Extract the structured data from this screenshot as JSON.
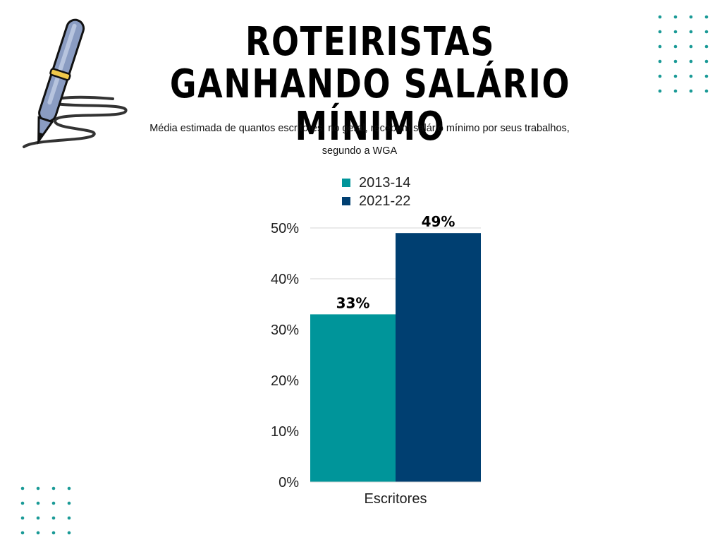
{
  "header": {
    "title": "ROTEIRISTAS GANHANDO SALÁRIO MÍNIMO",
    "subtitle": "Média estimada de quantos escritores, no geral, recebem salário mínimo por seus trabalhos, segundo a WGA"
  },
  "decor": {
    "icon": "pen-signature-icon",
    "dot_color": "#1a9a96"
  },
  "chart_data": {
    "type": "bar",
    "title": "",
    "xlabel": "",
    "ylabel": "",
    "categories": [
      "Escritores"
    ],
    "series": [
      {
        "name": "2013-14",
        "values": [
          33
        ],
        "color": "#00959a",
        "label": "33%"
      },
      {
        "name": "2021-22",
        "values": [
          49
        ],
        "color": "#003f71",
        "label": "49%"
      }
    ],
    "ylim": [
      0,
      50
    ],
    "yticks": [
      "0%",
      "10%",
      "20%",
      "30%",
      "40%",
      "50%"
    ],
    "legend": "top-center",
    "grid": true
  }
}
